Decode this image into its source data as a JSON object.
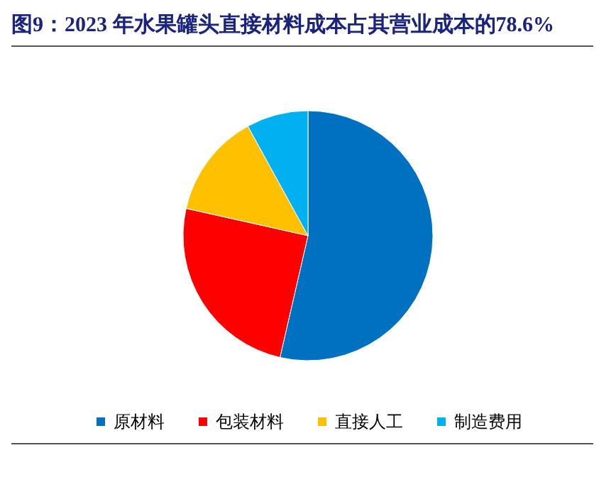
{
  "chart_data": {
    "type": "pie",
    "title": "图9：2023 年水果罐头直接材料成本占其营业成本的78.6%",
    "categories": [
      "原材料",
      "包装材料",
      "直接人工",
      "制造费用"
    ],
    "values": [
      53.6,
      24.9,
      13.5,
      8.0
    ],
    "colors": [
      "#0070c0",
      "#ff0000",
      "#ffc000",
      "#00b0f0"
    ],
    "legend": "bottom"
  }
}
